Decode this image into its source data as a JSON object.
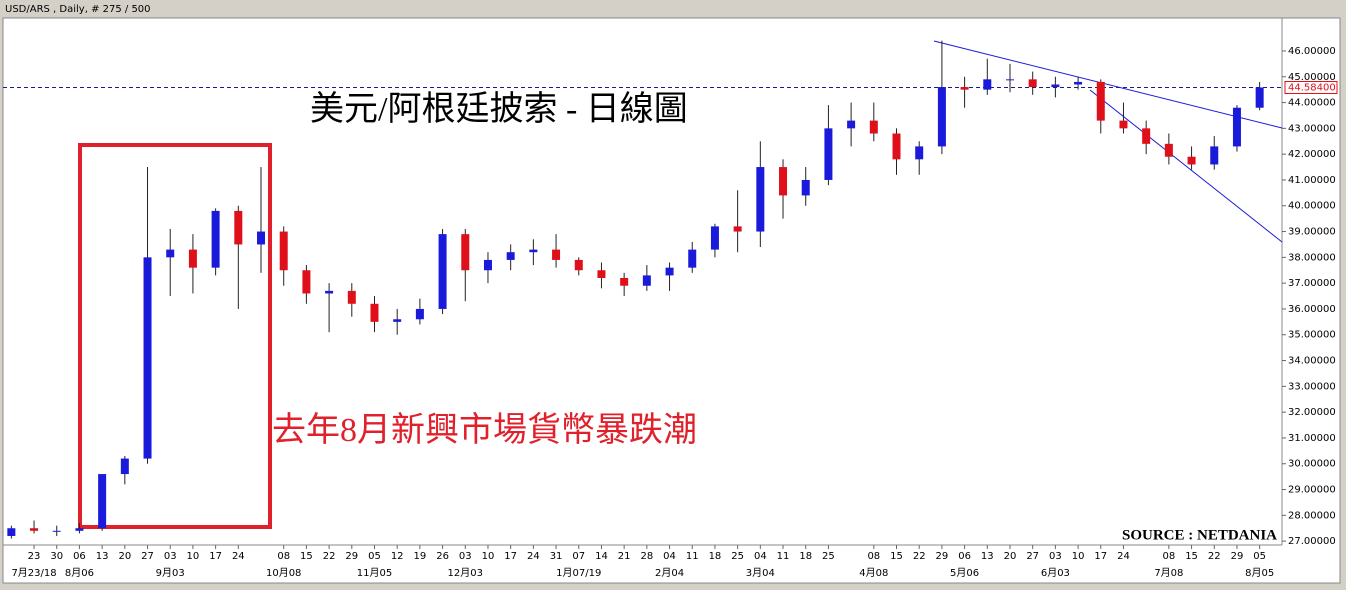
{
  "header": "USD/ARS , Daily, # 275 / 500",
  "chart_data": {
    "type": "candlestick",
    "title": "美元/阿根廷披索 - 日線圖",
    "annotation": "去年8月新興市場貨幣暴跌潮",
    "source": "SOURCE : NETDANIA",
    "categories": [
      null,
      "23",
      "30",
      "06",
      "13",
      "20",
      "27",
      "03",
      "10",
      "17",
      "24",
      null,
      "08",
      "15",
      "22",
      "29",
      "05",
      "12",
      "19",
      "26",
      "03",
      "10",
      "17",
      "24",
      "31",
      "07",
      "14",
      "21",
      "28",
      "04",
      "11",
      "18",
      "25",
      "04",
      "11",
      "18",
      "25",
      null,
      "08",
      "15",
      "22",
      "29",
      "06",
      "13",
      "20",
      "27",
      "03",
      "10",
      "17",
      "24",
      null,
      "08",
      "15",
      "22",
      "29",
      "05"
    ],
    "month_labels": [
      null,
      "7月23/18",
      null,
      "8月06",
      null,
      null,
      null,
      "9月03",
      null,
      null,
      null,
      null,
      "10月08",
      null,
      null,
      null,
      "11月05",
      null,
      null,
      null,
      "12月03",
      null,
      null,
      null,
      null,
      "1月07/19",
      null,
      null,
      null,
      "2月04",
      null,
      null,
      null,
      "3月04",
      null,
      null,
      null,
      null,
      "4月08",
      null,
      null,
      null,
      "5月06",
      null,
      null,
      null,
      "6月03",
      null,
      null,
      null,
      null,
      "7月08",
      null,
      null,
      null,
      "8月05"
    ],
    "open": [
      27.2,
      27.5,
      27.4,
      27.4,
      27.5,
      29.6,
      30.2,
      38.0,
      38.3,
      37.6,
      39.8,
      38.5,
      39.0,
      37.5,
      36.6,
      36.7,
      36.2,
      35.5,
      35.6,
      36.0,
      38.9,
      37.5,
      37.9,
      38.2,
      38.3,
      37.9,
      37.5,
      37.2,
      36.9,
      37.3,
      37.6,
      38.3,
      39.2,
      39.0,
      41.5,
      40.4,
      41.0,
      43.0,
      43.3,
      42.8,
      41.8,
      42.3,
      44.6,
      44.5,
      44.9,
      44.9,
      44.6,
      44.7,
      44.8,
      43.3,
      43.0,
      42.4,
      41.9,
      41.6,
      42.3,
      43.8
    ],
    "high": [
      27.6,
      27.8,
      27.6,
      27.7,
      29.5,
      30.3,
      41.5,
      39.1,
      38.9,
      39.9,
      40.0,
      41.5,
      39.2,
      37.7,
      37.0,
      37.0,
      36.5,
      36.0,
      36.4,
      39.1,
      39.1,
      38.2,
      38.5,
      38.7,
      38.9,
      38.0,
      37.8,
      37.4,
      37.7,
      37.8,
      38.6,
      39.3,
      40.6,
      42.5,
      41.8,
      41.5,
      43.9,
      44.0,
      44.0,
      43.0,
      42.5,
      46.4,
      45.0,
      45.7,
      45.5,
      45.2,
      45.0,
      45.0,
      44.9,
      44.0,
      43.3,
      42.8,
      42.3,
      42.7,
      43.9,
      44.8
    ],
    "low": [
      27.1,
      27.3,
      27.2,
      27.3,
      27.4,
      29.2,
      30.0,
      36.5,
      36.6,
      37.3,
      36.0,
      37.4,
      36.9,
      36.2,
      35.1,
      35.7,
      35.1,
      35.0,
      35.4,
      35.8,
      36.3,
      37.0,
      37.5,
      37.7,
      37.6,
      37.3,
      36.8,
      36.5,
      36.7,
      36.7,
      37.4,
      38.0,
      38.2,
      38.4,
      39.5,
      40.0,
      40.8,
      42.3,
      42.5,
      41.2,
      41.2,
      42.0,
      43.8,
      44.3,
      44.4,
      44.3,
      44.2,
      44.5,
      42.8,
      42.8,
      42.0,
      41.6,
      41.4,
      41.4,
      42.1,
      43.7
    ],
    "close": [
      27.5,
      27.4,
      27.4,
      27.5,
      29.6,
      30.2,
      38.0,
      38.3,
      37.6,
      39.8,
      38.5,
      39.0,
      37.5,
      36.6,
      36.7,
      36.2,
      35.5,
      35.6,
      36.0,
      38.9,
      37.5,
      37.9,
      38.2,
      38.3,
      37.9,
      37.5,
      37.2,
      36.9,
      37.3,
      37.6,
      38.3,
      39.2,
      39.0,
      41.5,
      40.4,
      41.0,
      43.0,
      43.3,
      42.8,
      41.8,
      42.3,
      44.6,
      44.5,
      44.9,
      44.9,
      44.6,
      44.7,
      44.8,
      43.3,
      43.0,
      42.4,
      41.9,
      41.6,
      42.3,
      43.8,
      44.584
    ],
    "up_color": "#1a1adb",
    "down_color": "#e0101a",
    "last_price": {
      "value": 44.584,
      "label": "44.58400"
    },
    "ylim": [
      26.85,
      47.2
    ],
    "yticks": [
      {
        "value": 27,
        "label": "27.00000"
      },
      {
        "value": 28,
        "label": "28.00000"
      },
      {
        "value": 29,
        "label": "29.00000"
      },
      {
        "value": 30,
        "label": "30.00000"
      },
      {
        "value": 31,
        "label": "31.00000"
      },
      {
        "value": 32,
        "label": "32.00000"
      },
      {
        "value": 33,
        "label": "33.00000"
      },
      {
        "value": 34,
        "label": "34.00000"
      },
      {
        "value": 35,
        "label": "35.00000"
      },
      {
        "value": 36,
        "label": "36.00000"
      },
      {
        "value": 37,
        "label": "37.00000"
      },
      {
        "value": 38,
        "label": "38.00000"
      },
      {
        "value": 39,
        "label": "39.00000"
      },
      {
        "value": 40,
        "label": "40.00000"
      },
      {
        "value": 41,
        "label": "41.00000"
      },
      {
        "value": 42,
        "label": "42.00000"
      },
      {
        "value": 43,
        "label": "43.00000"
      },
      {
        "value": 44,
        "label": "44.00000"
      },
      {
        "value": 45,
        "label": "45.00000"
      },
      {
        "value": 46,
        "label": "46.00000"
      }
    ]
  }
}
